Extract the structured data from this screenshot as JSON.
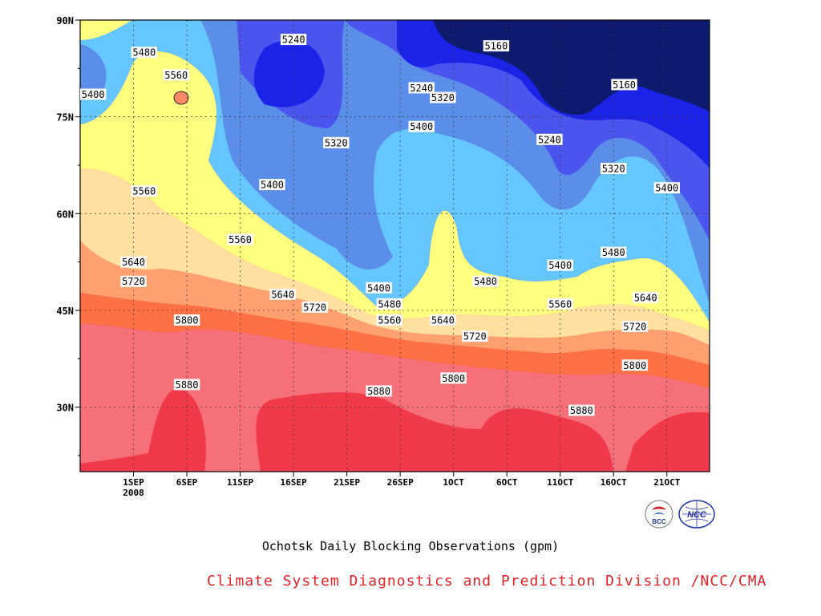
{
  "chart_data": {
    "type": "heatmap",
    "title": "",
    "xlabel": "",
    "ylabel": "",
    "caption": "Ochotsk Daily Blocking Observations (gpm)",
    "credit": "Climate System Diagnostics and Prediction Division /NCC/CMA",
    "x_tick_labels": [
      "1SEP",
      "6SEP",
      "11SEP",
      "16SEP",
      "21SEP",
      "26SEP",
      "1OCT",
      "6OCT",
      "11OCT",
      "16OCT",
      "21OCT"
    ],
    "x_year_label": "2008",
    "y_tick_labels": [
      "90N",
      "75N",
      "60N",
      "45N",
      "30N"
    ],
    "y_tick_values": [
      90,
      75,
      60,
      45,
      30
    ],
    "ylim": [
      20,
      90
    ],
    "contour_levels": [
      5160,
      5240,
      5320,
      5400,
      5480,
      5560,
      5640,
      5720,
      5800,
      5880
    ],
    "fill_colors": [
      "#0d1a6e",
      "#1a23e6",
      "#4b55ee",
      "#5b8ee8",
      "#66c6ff",
      "#ffff80",
      "#ffe0a0",
      "#ffa070",
      "#ff7044",
      "#f57078",
      "#f03a4a"
    ],
    "grid": true,
    "contour_labels": [
      {
        "value": "5480",
        "date": "Sep 2",
        "lat": 85
      },
      {
        "value": "5560",
        "date": "Sep 5",
        "lat": 81.5
      },
      {
        "value": "5400",
        "date": "Aug 28",
        "lat": 78.5
      },
      {
        "value": "5240",
        "date": "Sep 16",
        "lat": 87
      },
      {
        "value": "5160",
        "date": "Oct 5",
        "lat": 86
      },
      {
        "value": "5240",
        "date": "Sep 28",
        "lat": 79.5
      },
      {
        "value": "5320",
        "date": "Sep 30",
        "lat": 78
      },
      {
        "value": "5160",
        "date": "Oct 17",
        "lat": 80
      },
      {
        "value": "5400",
        "date": "Sep 28",
        "lat": 73.5
      },
      {
        "value": "5320",
        "date": "Sep 20",
        "lat": 71
      },
      {
        "value": "5240",
        "date": "Oct 10",
        "lat": 71.5
      },
      {
        "value": "5320",
        "date": "Oct 16",
        "lat": 67
      },
      {
        "value": "5400",
        "date": "Sep 14",
        "lat": 64.5
      },
      {
        "value": "5400",
        "date": "Oct 21",
        "lat": 64
      },
      {
        "value": "5560",
        "date": "Sep 2",
        "lat": 63.5
      },
      {
        "value": "5560",
        "date": "Sep 11",
        "lat": 56
      },
      {
        "value": "5640",
        "date": "Sep 1",
        "lat": 52.5
      },
      {
        "value": "5720",
        "date": "Sep 1",
        "lat": 49.5
      },
      {
        "value": "5400",
        "date": "Sep 24",
        "lat": 48.5
      },
      {
        "value": "5480",
        "date": "Oct 4",
        "lat": 49.5
      },
      {
        "value": "5400",
        "date": "Oct 11",
        "lat": 52
      },
      {
        "value": "5480",
        "date": "Oct 16",
        "lat": 54
      },
      {
        "value": "5640",
        "date": "Sep 15",
        "lat": 47.5
      },
      {
        "value": "5720",
        "date": "Sep 18",
        "lat": 45.5
      },
      {
        "value": "5480",
        "date": "Sep 25",
        "lat": 46
      },
      {
        "value": "5560",
        "date": "Sep 25",
        "lat": 43.5
      },
      {
        "value": "5640",
        "date": "Sep 30",
        "lat": 43.5
      },
      {
        "value": "5560",
        "date": "Oct 11",
        "lat": 46
      },
      {
        "value": "5640",
        "date": "Oct 19",
        "lat": 47
      },
      {
        "value": "5800",
        "date": "Sep 6",
        "lat": 43.5
      },
      {
        "value": "5720",
        "date": "Oct 3",
        "lat": 41
      },
      {
        "value": "5720",
        "date": "Oct 18",
        "lat": 42.5
      },
      {
        "value": "5800",
        "date": "Oct 1",
        "lat": 34.5
      },
      {
        "value": "5800",
        "date": "Oct 18",
        "lat": 36.5
      },
      {
        "value": "5880",
        "date": "Sep 6",
        "lat": 33.5
      },
      {
        "value": "5880",
        "date": "Sep 24",
        "lat": 32.5
      },
      {
        "value": "5880",
        "date": "Oct 13",
        "lat": 29.5
      }
    ]
  },
  "logos": [
    {
      "name": "bcc-logo",
      "text": "BCC"
    },
    {
      "name": "ncc-logo",
      "text": "NCC"
    }
  ]
}
